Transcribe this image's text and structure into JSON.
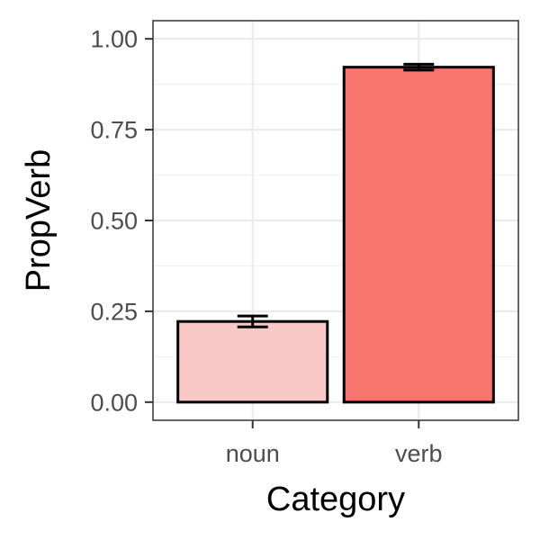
{
  "chart_data": {
    "type": "bar",
    "categories": [
      "noun",
      "verb"
    ],
    "values": [
      0.222,
      0.922
    ],
    "error_bars": [
      {
        "low": 0.207,
        "high": 0.237
      },
      {
        "low": 0.914,
        "high": 0.93
      }
    ],
    "colors": [
      "#F8C8C6",
      "#F8766D"
    ],
    "title": "",
    "xlabel": "Category",
    "ylabel": "PropVerb",
    "ylim": [
      -0.05,
      1.05
    ],
    "yticks": [
      0.0,
      0.25,
      0.5,
      0.75,
      1.0
    ],
    "ytick_labels": [
      "0.00",
      "0.25",
      "0.50",
      "0.75",
      "1.00"
    ],
    "grid": true,
    "legend": "none"
  }
}
